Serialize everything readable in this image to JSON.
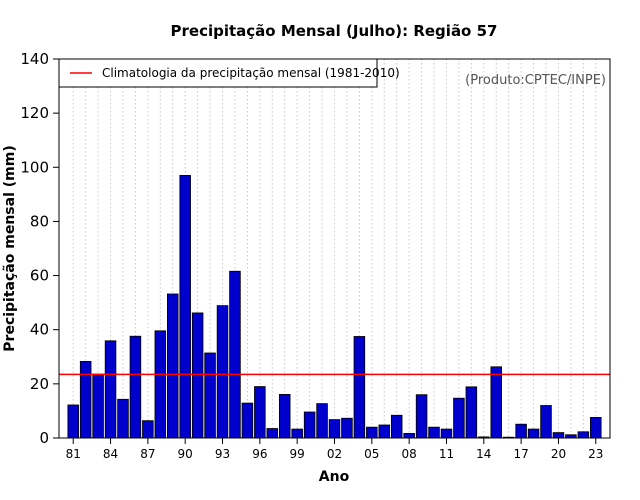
{
  "chart_data": {
    "type": "bar",
    "title": "Precipitação Mensal (Julho): Região 57",
    "xlabel": "Ano",
    "ylabel": "Precipitação mensal (mm)",
    "source_note": "(Produto:CPTEC/INPE)",
    "ylim": [
      0,
      140
    ],
    "yticks": [
      0,
      20,
      40,
      60,
      80,
      100,
      120,
      140
    ],
    "xtick_labels": [
      "81",
      "84",
      "87",
      "90",
      "93",
      "96",
      "99",
      "02",
      "05",
      "08",
      "11",
      "14",
      "17",
      "20",
      "23"
    ],
    "categories": [
      "1981",
      "1982",
      "1983",
      "1984",
      "1985",
      "1986",
      "1987",
      "1988",
      "1989",
      "1990",
      "1991",
      "1992",
      "1993",
      "1994",
      "1995",
      "1996",
      "1997",
      "1998",
      "1999",
      "2000",
      "2001",
      "2002",
      "2003",
      "2004",
      "2005",
      "2006",
      "2007",
      "2008",
      "2009",
      "2010",
      "2011",
      "2012",
      "2013",
      "2014",
      "2015",
      "2016",
      "2017",
      "2018",
      "2019",
      "2020",
      "2021",
      "2022",
      "2023"
    ],
    "values": [
      12.2,
      28.3,
      23.6,
      35.9,
      14.3,
      37.6,
      6.4,
      39.6,
      53.2,
      97.0,
      46.2,
      31.4,
      48.9,
      61.6,
      12.9,
      19.0,
      3.5,
      16.1,
      3.3,
      9.6,
      12.7,
      6.8,
      7.3,
      37.5,
      4.0,
      4.8,
      8.4,
      1.7,
      16.0,
      4.0,
      3.3,
      14.7,
      18.9,
      0.4,
      26.3,
      0.3,
      5.1,
      3.3,
      12.0,
      2.0,
      1.2,
      2.3,
      7.6
    ],
    "climatology": {
      "label": "Climatologia da precipitação mensal (1981-2010)",
      "value": 23.5
    },
    "legend_position": "top-left",
    "grid": "vertical-dotted",
    "colors": {
      "bar_fill": "#0000cc",
      "bar_stroke": "#000000",
      "climatology_line": "#ff0000",
      "grid": "#c8c8c8"
    }
  }
}
